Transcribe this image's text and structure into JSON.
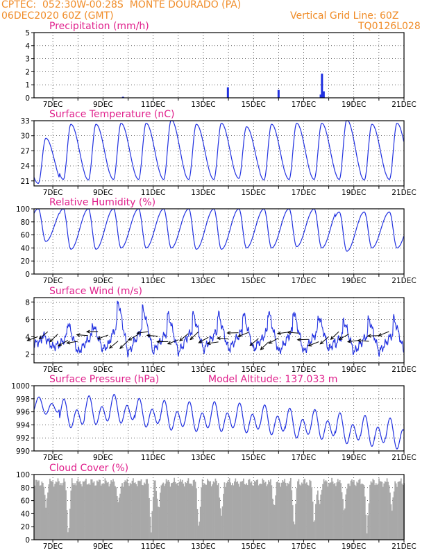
{
  "header": {
    "line1": "CPTEC:  052:30W-00:28S  MONTE DOURADO (PA)",
    "line2": "06DEC2020 60Z (GMT)",
    "grid_note": "Vertical Grid Line: 60Z",
    "code": "TQ0126L028"
  },
  "colors": {
    "header": "#f08c28",
    "title": "#e0208c",
    "line": "#2030e0",
    "cloud": "#a8a8a8",
    "wind_arrow": "#000000"
  },
  "chart_data": [
    {
      "type": "bar",
      "title": "Precipitation (mm/h)",
      "ylim": [
        0,
        5
      ],
      "yticks": [
        "0",
        "1",
        "2",
        "3",
        "4",
        "5"
      ],
      "x_tick_labels": [
        "7DEC",
        "9DEC",
        "11DEC",
        "13DEC",
        "15DEC",
        "17DEC",
        "19DEC",
        "21DEC"
      ],
      "x_range_days": [
        6.25,
        21.0
      ],
      "bars": [
        {
          "day": 9.8,
          "value": 0.08
        },
        {
          "day": 13.98,
          "value": 0.8
        },
        {
          "day": 16.0,
          "value": 0.6
        },
        {
          "day": 17.73,
          "value": 1.85
        },
        {
          "day": 17.8,
          "value": 0.5
        },
        {
          "day": 17.68,
          "value": 0.25
        }
      ]
    },
    {
      "type": "line",
      "title": "Surface Temperature (nC)",
      "ylim": [
        20,
        33
      ],
      "yticks": [
        "21",
        "24",
        "27",
        "30",
        "33"
      ],
      "x_tick_labels": [
        "7DEC",
        "9DEC",
        "11DEC",
        "13DEC",
        "15DEC",
        "17DEC",
        "19DEC",
        "21DEC"
      ],
      "series": [
        {
          "mins": [
            20.5,
            21.3,
            21.2,
            21.3,
            21.3,
            21.3,
            21.3,
            21.3,
            21.5,
            21.2,
            21.3,
            21.3,
            21.3,
            21.2,
            21.3
          ],
          "maxs": [
            29.5,
            32.3,
            32.3,
            32.5,
            32.5,
            33.2,
            32.3,
            32.5,
            31.8,
            32.3,
            32.5,
            32.5,
            33.2,
            32.3,
            32.5
          ]
        }
      ]
    },
    {
      "type": "line",
      "title": "Relative Humidity (%)",
      "ylim": [
        0,
        100
      ],
      "yticks": [
        "0",
        "20",
        "40",
        "60",
        "80",
        "100"
      ],
      "x_tick_labels": [
        "7DEC",
        "9DEC",
        "11DEC",
        "13DEC",
        "15DEC",
        "17DEC",
        "19DEC",
        "21DEC"
      ],
      "series": [
        {
          "mins": [
            50,
            38,
            38,
            40,
            40,
            40,
            38,
            38,
            40,
            40,
            42,
            40,
            35,
            40,
            40
          ],
          "maxs": [
            100,
            100,
            100,
            100,
            100,
            100,
            100,
            100,
            100,
            100,
            100,
            100,
            95,
            95,
            95
          ]
        }
      ]
    },
    {
      "type": "line",
      "title": "Surface Wind (m/s)",
      "ylim": [
        1,
        8.5
      ],
      "yticks": [
        "2",
        "4",
        "6",
        "8"
      ],
      "x_tick_labels": [
        "7DEC",
        "9DEC",
        "11DEC",
        "13DEC",
        "15DEC",
        "17DEC",
        "19DEC",
        "21DEC"
      ],
      "series": [
        {
          "mins": [
            2.8,
            2.2,
            2.5,
            2.0,
            2.2,
            2.2,
            2.5,
            2.5,
            2.5,
            2.2,
            2.2,
            2.5,
            2.2,
            2.2,
            2.3
          ],
          "maxs": [
            4.2,
            5.5,
            5.3,
            8.0,
            7.2,
            6.5,
            6.5,
            6.5,
            6.5,
            6.8,
            6.8,
            6.3,
            5.8,
            6.0,
            6.0
          ]
        }
      ],
      "arrow_count": 36
    },
    {
      "type": "line",
      "title": "Surface Pressure (hPa)",
      "annotation": "Model Altitude: 137.033 m",
      "ylim": [
        990,
        1000
      ],
      "yticks": [
        "990",
        "992",
        "994",
        "996",
        "998",
        "1000"
      ],
      "x_tick_labels": [
        "7DEC",
        "9DEC",
        "11DEC",
        "13DEC",
        "15DEC",
        "17DEC",
        "19DEC",
        "21DEC"
      ],
      "series": [
        {
          "cycle_mean": [
            996.8,
            995.5,
            996.0,
            996.2,
            995.6,
            995.2,
            995.0,
            995.0,
            994.8,
            994.5,
            994.0,
            993.8,
            993.2,
            992.8,
            992.4
          ],
          "cycle_amp": [
            1.5,
            2.5,
            2.5,
            2.5,
            2.5,
            2.6,
            2.6,
            2.6,
            2.6,
            2.6,
            2.6,
            2.6,
            2.7,
            2.7,
            2.7
          ]
        }
      ]
    },
    {
      "type": "area",
      "title": "Cloud Cover (%)",
      "ylim": [
        0,
        100
      ],
      "yticks": [
        "0",
        "20",
        "40",
        "60",
        "80",
        "100"
      ],
      "x_tick_labels": [
        "7DEC",
        "9DEC",
        "11DEC",
        "13DEC",
        "15DEC",
        "17DEC",
        "19DEC",
        "21DEC"
      ],
      "typical_cover": 88
    }
  ]
}
